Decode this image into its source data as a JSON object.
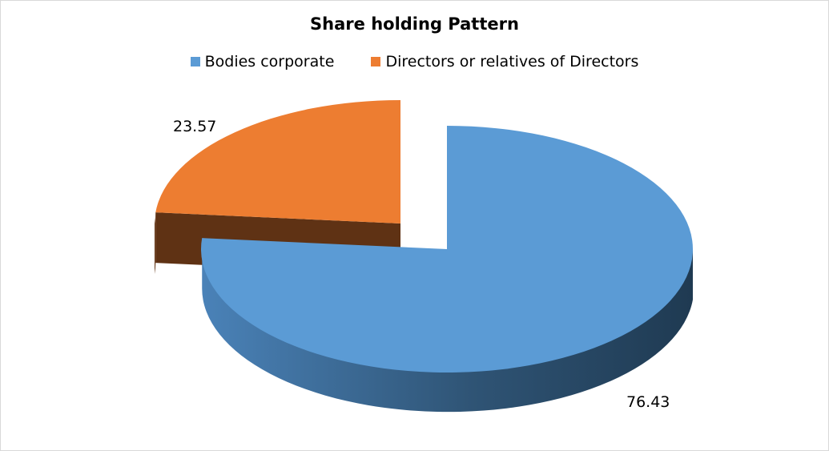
{
  "chart_data": {
    "type": "pie",
    "title": "Share holding Pattern",
    "legend_position": "top",
    "series": [
      {
        "name": "Bodies corporate",
        "value": 76.43,
        "label": "76.43",
        "color": "#5b9bd5"
      },
      {
        "name": "Directors or relatives of Directors",
        "value": 23.57,
        "label": "23.57",
        "color": "#ed7d31"
      }
    ]
  }
}
